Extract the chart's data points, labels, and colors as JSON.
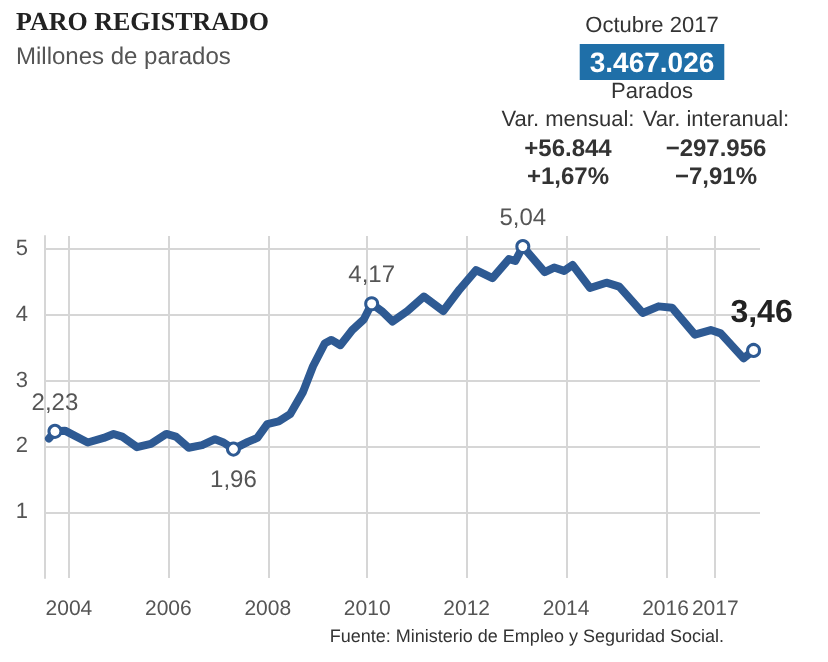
{
  "chart_data": {
    "type": "line",
    "title": "PARO REGISTRADO",
    "subtitle": "Millones de parados",
    "x": [
      2003.6,
      2003.72,
      2003.92,
      2004.38,
      2004.7,
      2004.9,
      2005.07,
      2005.37,
      2005.65,
      2005.96,
      2006.15,
      2006.41,
      2006.68,
      2006.94,
      2007.11,
      2007.31,
      2007.6,
      2007.79,
      2007.99,
      2008.22,
      2008.45,
      2008.71,
      2008.91,
      2009.15,
      2009.28,
      2009.46,
      2009.7,
      2009.93,
      2010.09,
      2010.29,
      2010.51,
      2010.81,
      2011.14,
      2011.53,
      2011.86,
      2012.19,
      2012.52,
      2012.85,
      2012.98,
      2013.13,
      2013.57,
      2013.76,
      2013.96,
      2014.13,
      2014.48,
      2014.81,
      2015.07,
      2015.54,
      2015.86,
      2016.13,
      2016.59,
      2016.91,
      2017.11,
      2017.57,
      2017.77
    ],
    "series": [
      {
        "color": "#2e5a93",
        "values": [
          2.12,
          2.23,
          2.24,
          2.06,
          2.13,
          2.19,
          2.15,
          1.99,
          2.04,
          2.19,
          2.15,
          1.98,
          2.02,
          2.11,
          2.06,
          1.96,
          2.07,
          2.13,
          2.34,
          2.38,
          2.49,
          2.83,
          3.22,
          3.57,
          3.62,
          3.54,
          3.77,
          3.93,
          4.17,
          4.06,
          3.9,
          4.06,
          4.28,
          4.06,
          4.39,
          4.68,
          4.56,
          4.85,
          4.82,
          5.04,
          4.65,
          4.72,
          4.67,
          4.76,
          4.41,
          4.49,
          4.43,
          4.03,
          4.13,
          4.11,
          3.7,
          3.77,
          3.72,
          3.34,
          3.46
        ]
      }
    ],
    "xlim": [
      2003.5,
      2017.9
    ],
    "xticks": [
      2004,
      2006,
      2008,
      2010,
      2012,
      2014,
      2016,
      2017
    ],
    "ylim": [
      0,
      5.2
    ],
    "yticks": [
      1,
      2,
      3,
      4,
      5
    ],
    "grid": true,
    "marker": "none",
    "line_style": "solid",
    "annotations": [
      "Octubre 2017",
      "3.467.026",
      "Parados",
      "Var. mensual:",
      "+56.844",
      "+1,67%",
      "Var. interanual:",
      "−297.956",
      "−7,91%",
      "Fuente: Ministerio de Empleo y Seguridad Social.",
      {
        "text": "2,23",
        "x": 2003.72,
        "y": 2.23
      },
      {
        "text": "1,96",
        "x": 2007.31,
        "y": 1.96
      },
      {
        "text": "4,17",
        "x": 2010.09,
        "y": 4.17
      },
      {
        "text": "5,04",
        "x": 2013.13,
        "y": 5.04
      },
      {
        "text": "3,46",
        "x": 2017.77,
        "y": 3.46
      }
    ]
  }
}
